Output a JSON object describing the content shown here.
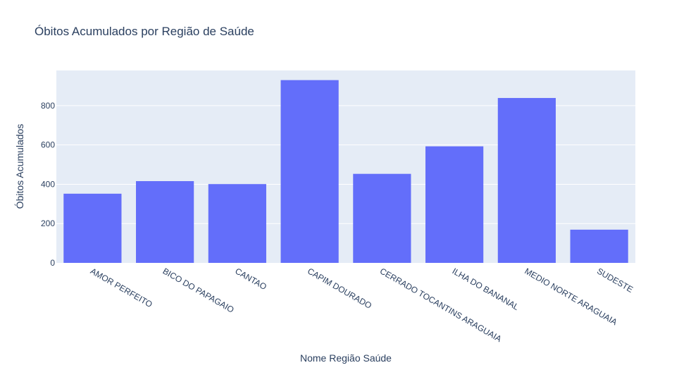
{
  "chart_data": {
    "type": "bar",
    "title": "Óbitos Acumulados por Região de Saúde",
    "xlabel": "Nome Região Saúde",
    "ylabel": "Óbitos Acumulados",
    "categories": [
      "AMOR PERFEITO",
      "BICO DO PAPAGAIO",
      "CANTAO",
      "CAPIM DOURADO",
      "CERRADO TOCANTINS ARAGUAIA",
      "ILHA DO BANANAL",
      "MEDIO NORTE ARAGUAIA",
      "SUDESTE"
    ],
    "values": [
      352,
      416,
      401,
      930,
      453,
      593,
      839,
      169
    ],
    "ylim": [
      0,
      979
    ],
    "yticks": [
      0,
      200,
      400,
      600,
      800
    ],
    "grid": true,
    "colors": {
      "bar": "#636efa",
      "plot_bg": "#e5ecf6",
      "grid": "#ffffff",
      "text": "#2a3f5f"
    }
  }
}
